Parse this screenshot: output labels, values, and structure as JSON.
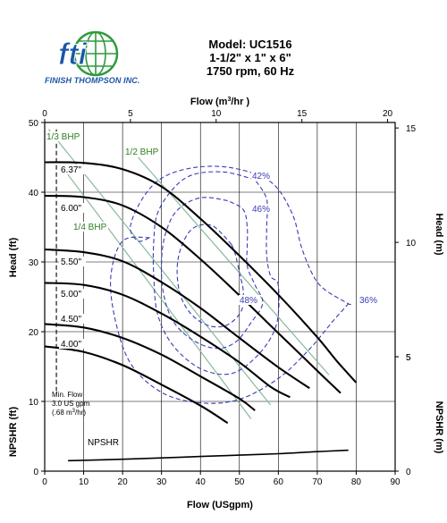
{
  "brand": {
    "logo_text": "fti",
    "company": "FINISH THOMPSON INC."
  },
  "header": {
    "model": "Model: UC1516",
    "size": "1-1/2\" x 1\" x 6\"",
    "speed": "1750 rpm, 60 Hz"
  },
  "chart_data": {
    "type": "line",
    "colors": {
      "head": "#000000",
      "bhp": "#8ab89a",
      "efficiency": "#3a3ab8",
      "bhp_label": "#2e7d1f"
    },
    "axes": {
      "x_bottom": {
        "label": "Flow (USgpm)",
        "range": [
          0,
          90
        ],
        "ticks": [
          "0",
          "10",
          "20",
          "30",
          "40",
          "50",
          "60",
          "70",
          "80",
          "90"
        ]
      },
      "x_top": {
        "label_main": "Flow (m",
        "label_sup": "3",
        "label_end": "/hr )",
        "range": [
          0,
          20.44
        ],
        "ticks": [
          "0",
          "5",
          "10",
          "15",
          "20"
        ],
        "tick_values": [
          0,
          5,
          10,
          15,
          20
        ]
      },
      "y_left_head": {
        "label": "Head (ft)",
        "range": [
          0,
          50
        ],
        "ticks": [
          "0",
          "10",
          "20",
          "30",
          "40",
          "50"
        ]
      },
      "y_left_npshr": {
        "label": "NPSHR (ft)"
      },
      "y_right_head": {
        "label": "Head (m)",
        "range": [
          0,
          15.24
        ],
        "ticks": [
          "5",
          "10",
          "15"
        ],
        "tick_values": [
          5,
          10,
          15
        ]
      },
      "y_right_npshr": {
        "label": "NPSHR (m)",
        "ticks": [
          "0",
          "5"
        ],
        "tick_values": [
          0,
          5
        ]
      },
      "grid": true
    },
    "head_curves": [
      {
        "label": "6.37\"",
        "points": [
          [
            0,
            44.3
          ],
          [
            10,
            44.2
          ],
          [
            20,
            43.3
          ],
          [
            30,
            40.8
          ],
          [
            40,
            36.2
          ],
          [
            50,
            30.9
          ],
          [
            60,
            25.3
          ],
          [
            70,
            19.2
          ],
          [
            75,
            15.8
          ],
          [
            80,
            12.7
          ]
        ]
      },
      {
        "label": "6.00\"",
        "points": [
          [
            0,
            39.5
          ],
          [
            10,
            39.3
          ],
          [
            20,
            38.1
          ],
          [
            30,
            35.0
          ],
          [
            40,
            30.4
          ],
          [
            50,
            25.2
          ],
          [
            60,
            19.8
          ],
          [
            70,
            14.4
          ],
          [
            76,
            11.2
          ]
        ]
      },
      {
        "label": "5.50\"",
        "points": [
          [
            0,
            31.8
          ],
          [
            10,
            31.4
          ],
          [
            20,
            30.1
          ],
          [
            30,
            27.1
          ],
          [
            40,
            23.4
          ],
          [
            50,
            19.1
          ],
          [
            60,
            14.9
          ],
          [
            68,
            11.9
          ]
        ]
      },
      {
        "label": "5.00\"",
        "points": [
          [
            0,
            27.0
          ],
          [
            10,
            26.7
          ],
          [
            20,
            25.3
          ],
          [
            30,
            22.6
          ],
          [
            40,
            19.3
          ],
          [
            50,
            15.6
          ],
          [
            58,
            12.1
          ],
          [
            63,
            10.6
          ]
        ]
      },
      {
        "label": "4.50\"",
        "points": [
          [
            0,
            21.1
          ],
          [
            10,
            20.6
          ],
          [
            20,
            19.1
          ],
          [
            30,
            16.7
          ],
          [
            40,
            13.6
          ],
          [
            50,
            10.4
          ],
          [
            54,
            8.7
          ]
        ]
      },
      {
        "label": "4.00\"",
        "points": [
          [
            0,
            17.9
          ],
          [
            10,
            17.1
          ],
          [
            20,
            15.2
          ],
          [
            30,
            12.4
          ],
          [
            40,
            9.4
          ],
          [
            47,
            6.9
          ]
        ]
      }
    ],
    "bhp_lines": [
      {
        "label": "1/3 BHP",
        "points": [
          [
            1,
            49
          ],
          [
            58,
            9.5
          ]
        ]
      },
      {
        "label": "1/2 BHP",
        "points": [
          [
            24,
            45
          ],
          [
            73,
            13.8
          ]
        ]
      },
      {
        "label": "1/4 BHP",
        "points": [
          [
            4,
            44
          ],
          [
            53,
            7.5
          ]
        ]
      }
    ],
    "efficiency_contours": [
      {
        "label": "36%",
        "points": [
          [
            27,
            33.5
          ],
          [
            20,
            33
          ],
          [
            17,
            28
          ],
          [
            18,
            22
          ],
          [
            22,
            15.5
          ],
          [
            30,
            11.3
          ],
          [
            40,
            9.8
          ],
          [
            50,
            10.3
          ],
          [
            60,
            13.3
          ],
          [
            68,
            17.5
          ],
          [
            74,
            21.5
          ],
          [
            78,
            24
          ],
          [
            78,
            24
          ],
          [
            72,
            26
          ],
          [
            69,
            28
          ],
          [
            66,
            32
          ],
          [
            63.5,
            37
          ],
          [
            58,
            41.5
          ],
          [
            48,
            43.5
          ],
          [
            38,
            43.5
          ],
          [
            30,
            42
          ],
          [
            25,
            39
          ],
          [
            22,
            35
          ],
          [
            24,
            33
          ],
          [
            27,
            33.5
          ]
        ],
        "open": true
      },
      {
        "label": "42%",
        "points": [
          [
            54,
            41.8
          ],
          [
            46,
            42.9
          ],
          [
            38,
            42.5
          ],
          [
            33,
            40.5
          ],
          [
            29,
            37
          ],
          [
            28,
            33
          ],
          [
            28,
            28
          ],
          [
            29,
            22.5
          ],
          [
            33,
            18
          ],
          [
            40,
            14.7
          ],
          [
            48,
            14
          ],
          [
            55,
            16.8
          ],
          [
            59.5,
            21
          ],
          [
            60,
            26.6
          ],
          [
            58,
            28
          ],
          [
            57,
            31
          ],
          [
            57,
            35
          ],
          [
            57,
            39
          ],
          [
            54,
            41.8
          ]
        ]
      },
      {
        "label": "46%",
        "points": [
          [
            47,
            38.8
          ],
          [
            40,
            39.2
          ],
          [
            34,
            37.4
          ],
          [
            31,
            34
          ],
          [
            30,
            30
          ],
          [
            30.5,
            25.5
          ],
          [
            33,
            21.5
          ],
          [
            38,
            18.8
          ],
          [
            44,
            17.6
          ],
          [
            49,
            18.5
          ],
          [
            53,
            21.3
          ],
          [
            56,
            24.1
          ],
          [
            54,
            26.7
          ],
          [
            52,
            29.4
          ],
          [
            52,
            32
          ],
          [
            52,
            35
          ],
          [
            51,
            37.5
          ],
          [
            47,
            38.8
          ]
        ]
      },
      {
        "label": "48%",
        "points": [
          [
            48,
            32.5
          ],
          [
            43,
            35.2
          ],
          [
            38,
            34.8
          ],
          [
            35,
            32
          ],
          [
            34,
            28.7
          ],
          [
            35,
            25
          ],
          [
            38,
            22.3
          ],
          [
            42.5,
            20.8
          ],
          [
            47,
            21
          ],
          [
            50.5,
            23
          ],
          [
            51,
            25.8
          ],
          [
            50,
            28.5
          ],
          [
            49,
            31
          ],
          [
            48,
            32.5
          ]
        ]
      }
    ],
    "npshr": {
      "label": "NPSHR",
      "points": [
        [
          6,
          1.5
        ],
        [
          20,
          1.7
        ],
        [
          30,
          1.9
        ],
        [
          40,
          2.1
        ],
        [
          50,
          2.3
        ],
        [
          60,
          2.5
        ],
        [
          70,
          2.8
        ],
        [
          78,
          3.0
        ]
      ]
    },
    "min_flow": {
      "value_gpm": 3.0,
      "line1": "Min. Flow",
      "line2": "3.0 US gpm",
      "line3a": "(.68 m",
      "line3sup": "3",
      "line3b": "/hr)"
    }
  }
}
